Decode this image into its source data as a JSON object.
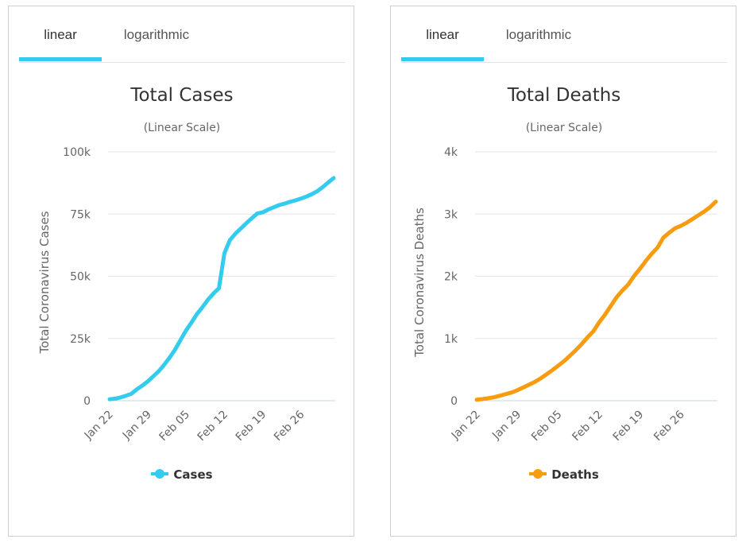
{
  "panels": [
    {
      "tabs": {
        "linear": "linear",
        "logarithmic": "logarithmic"
      },
      "legend": {
        "label": "Cases"
      },
      "color": "#33ccee"
    },
    {
      "tabs": {
        "linear": "linear",
        "logarithmic": "logarithmic"
      },
      "legend": {
        "label": "Deaths"
      },
      "color": "#f79c0f"
    }
  ],
  "chart_data": [
    {
      "type": "line",
      "title": "Total Cases",
      "subtitle": "(Linear Scale)",
      "ylabel": "Total Coronavirus Cases",
      "xlabel": "",
      "ylim": [
        0,
        100000
      ],
      "yticks": [
        0,
        25000,
        50000,
        75000,
        100000
      ],
      "ytick_labels": [
        "0",
        "25k",
        "50k",
        "75k",
        "100k"
      ],
      "xtick_labels": [
        "Jan 22",
        "Jan 29",
        "Feb 05",
        "Feb 12",
        "Feb 19",
        "Feb 26"
      ],
      "grid": true,
      "legend_position": "bottom-center",
      "x": [
        "Jan 22",
        "Jan 23",
        "Jan 24",
        "Jan 25",
        "Jan 26",
        "Jan 27",
        "Jan 28",
        "Jan 29",
        "Jan 30",
        "Jan 31",
        "Feb 01",
        "Feb 02",
        "Feb 03",
        "Feb 04",
        "Feb 05",
        "Feb 06",
        "Feb 07",
        "Feb 08",
        "Feb 09",
        "Feb 10",
        "Feb 11",
        "Feb 12",
        "Feb 13",
        "Feb 14",
        "Feb 15",
        "Feb 16",
        "Feb 17",
        "Feb 18",
        "Feb 19",
        "Feb 20",
        "Feb 21",
        "Feb 22",
        "Feb 23",
        "Feb 24",
        "Feb 25",
        "Feb 26",
        "Feb 27",
        "Feb 28",
        "Feb 29",
        "Mar 01",
        "Mar 02",
        "Mar 03"
      ],
      "series": [
        {
          "name": "Cases",
          "values": [
            580,
            845,
            1320,
            2010,
            2800,
            4600,
            6100,
            7800,
            9800,
            11900,
            14500,
            17400,
            20600,
            24500,
            28300,
            31500,
            34900,
            37600,
            40600,
            43100,
            45200,
            59200,
            64500,
            67100,
            69200,
            71300,
            73300,
            75200,
            75700,
            76800,
            77700,
            78600,
            79200,
            79900,
            80500,
            81200,
            82000,
            83000,
            84200,
            85800,
            87700,
            89500
          ]
        }
      ]
    },
    {
      "type": "line",
      "title": "Total Deaths",
      "subtitle": "(Linear Scale)",
      "ylabel": "Total Coronavirus Deaths",
      "xlabel": "",
      "ylim": [
        0,
        4000
      ],
      "yticks": [
        0,
        1000,
        2000,
        3000,
        4000
      ],
      "ytick_labels": [
        "0",
        "1k",
        "2k",
        "3k",
        "4k"
      ],
      "xtick_labels": [
        "Jan 22",
        "Jan 29",
        "Feb 05",
        "Feb 12",
        "Feb 19",
        "Feb 26"
      ],
      "grid": true,
      "legend_position": "bottom-center",
      "x": [
        "Jan 22",
        "Jan 23",
        "Jan 24",
        "Jan 25",
        "Jan 26",
        "Jan 27",
        "Jan 28",
        "Jan 29",
        "Jan 30",
        "Jan 31",
        "Feb 01",
        "Feb 02",
        "Feb 03",
        "Feb 04",
        "Feb 05",
        "Feb 06",
        "Feb 07",
        "Feb 08",
        "Feb 09",
        "Feb 10",
        "Feb 11",
        "Feb 12",
        "Feb 13",
        "Feb 14",
        "Feb 15",
        "Feb 16",
        "Feb 17",
        "Feb 18",
        "Feb 19",
        "Feb 20",
        "Feb 21",
        "Feb 22",
        "Feb 23",
        "Feb 24",
        "Feb 25",
        "Feb 26",
        "Feb 27",
        "Feb 28",
        "Feb 29",
        "Mar 01",
        "Mar 02",
        "Mar 03"
      ],
      "series": [
        {
          "name": "Deaths",
          "values": [
            17,
            25,
            41,
            56,
            80,
            106,
            132,
            170,
            213,
            259,
            304,
            362,
            426,
            492,
            565,
            638,
            724,
            813,
            910,
            1018,
            1115,
            1260,
            1383,
            1524,
            1666,
            1772,
            1870,
            2006,
            2122,
            2247,
            2360,
            2460,
            2620,
            2700,
            2770,
            2810,
            2860,
            2920,
            2980,
            3040,
            3110,
            3200
          ]
        }
      ]
    }
  ]
}
